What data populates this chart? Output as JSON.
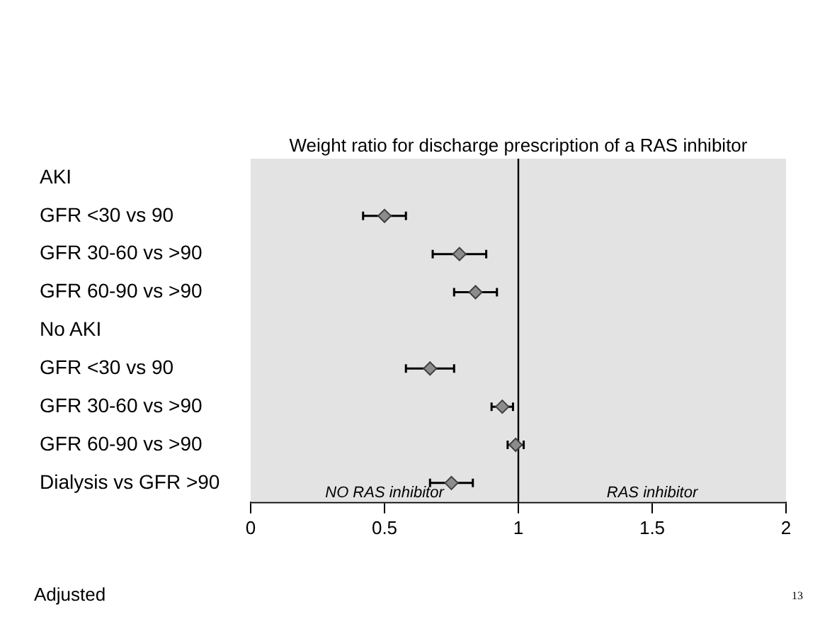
{
  "chart_data": {
    "type": "scatter",
    "orientation": "horizontal",
    "title": "Weight ratio for discharge prescription of a RAS inhibitor",
    "categories": [
      "AKI",
      "GFR <30 vs 90",
      "GFR 30-60 vs >90",
      "GFR 60-90 vs >90",
      "No AKI",
      "GFR <30 vs 90",
      "GFR 30-60 vs >90",
      "GFR 60-90 vs >90",
      "Dialysis vs GFR >90"
    ],
    "series": [
      {
        "color": "#8c8c8c",
        "values": [
          null,
          0.5,
          0.78,
          0.84,
          null,
          0.67,
          0.94,
          0.99,
          0.75
        ],
        "errors": [
          null,
          [
            0.42,
            0.58
          ],
          [
            0.68,
            0.88
          ],
          [
            0.76,
            0.92
          ],
          null,
          [
            0.58,
            0.76
          ],
          [
            0.9,
            0.98
          ],
          [
            0.96,
            1.02
          ],
          [
            0.67,
            0.83
          ]
        ]
      }
    ],
    "marker": "diamond",
    "xlim": [
      0,
      2
    ],
    "xticks": [
      0,
      0.5,
      1,
      1.5,
      2
    ],
    "grid": false,
    "legend": false,
    "ref_lines": [
      {
        "axis": "x",
        "value": 1,
        "color": "#000000"
      }
    ],
    "bands": [
      {
        "axis": "x",
        "from": 0,
        "to": 1,
        "label": "NO RAS inhibitor",
        "color": "#e3e3e3"
      },
      {
        "axis": "x",
        "from": 1,
        "to": 2,
        "label": "RAS inhibitor",
        "color": "#e3e3e3"
      }
    ],
    "annotations": [
      "Adjusted",
      "13"
    ]
  }
}
